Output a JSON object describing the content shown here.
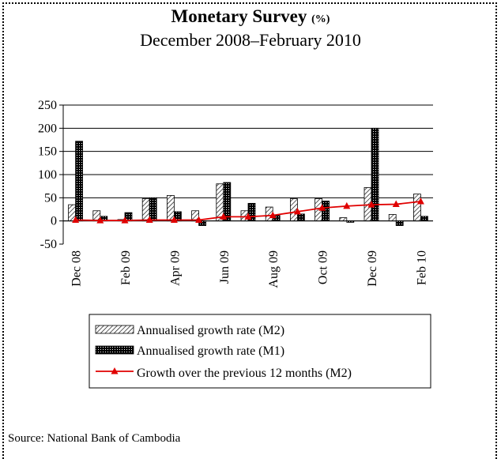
{
  "header": {
    "title": "Monetary Survey",
    "title_unit": "(%)",
    "subtitle": "December 2008–February 2010"
  },
  "footer": {
    "source": "Source: National Bank of Cambodia"
  },
  "colors": {
    "m2_bar": "#ffffff",
    "m1_bar": "#000000",
    "line": "#e00000"
  },
  "chart_data": {
    "type": "bar",
    "title": "Monetary Survey (%)",
    "subtitle": "December 2008–February 2010",
    "categories": [
      "Dec 08",
      "Jan 09",
      "Feb 09",
      "Mar 09",
      "Apr 09",
      "May 09",
      "Jun 09",
      "Jul 09",
      "Aug 09",
      "Sep 09",
      "Oct 09",
      "Nov 09",
      "Dec 09",
      "Jan 10",
      "Feb 10"
    ],
    "tick_labels": [
      "Dec 08",
      "Feb 09",
      "Apr 09",
      "Jun 09",
      "Aug 09",
      "Oct 09",
      "Dec 09",
      "Feb 10"
    ],
    "ylim": [
      -50,
      250
    ],
    "yticks": [
      -50,
      0,
      50,
      100,
      150,
      200,
      250
    ],
    "grid": true,
    "legend_position": "bottom",
    "series": [
      {
        "name": "Annualised growth rate (M2)",
        "kind": "bar",
        "pattern": "hatched",
        "values": [
          35,
          22,
          3,
          48,
          55,
          22,
          80,
          22,
          30,
          48,
          48,
          7,
          72,
          14,
          58
        ]
      },
      {
        "name": "Annualised growth rate (M1)",
        "kind": "bar",
        "pattern": "dotted-black",
        "values": [
          172,
          10,
          18,
          50,
          20,
          -10,
          83,
          38,
          12,
          15,
          43,
          -3,
          200,
          -10,
          10
        ]
      },
      {
        "name": "Growth over the previous 12 months (M2)",
        "kind": "line",
        "values": [
          2,
          1,
          1,
          2,
          2,
          2,
          9,
          9,
          12,
          20,
          28,
          32,
          35,
          36,
          42
        ]
      }
    ]
  }
}
